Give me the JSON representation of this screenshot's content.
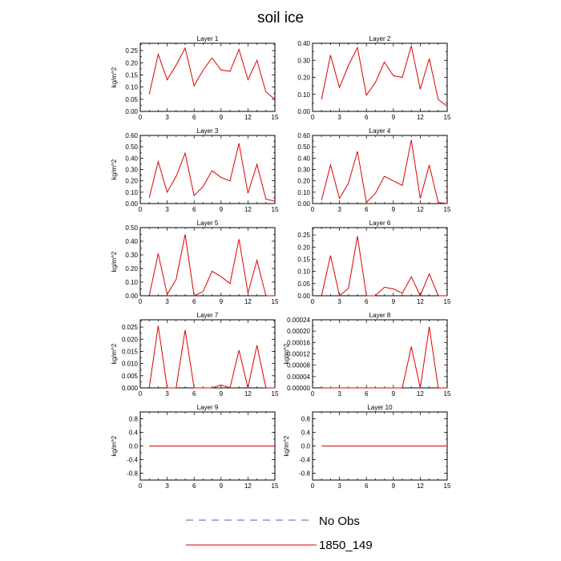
{
  "figure": {
    "title": "soil ice",
    "legend": [
      {
        "label": "No Obs",
        "color": "#5a5ab4",
        "dash": true
      },
      {
        "label": "1850_149",
        "color": "#e00000",
        "dash": false
      }
    ]
  },
  "chart_data": [
    {
      "type": "line",
      "title": "Layer 1",
      "ylabel": "kg/m^2",
      "x": [
        1,
        2,
        3,
        4,
        5,
        6,
        7,
        8,
        9,
        10,
        11,
        12,
        13,
        14,
        15
      ],
      "xlim": [
        0,
        15
      ],
      "xticks": [
        "0",
        "3",
        "6",
        "9",
        "12",
        "15"
      ],
      "ylim": [
        0,
        0.28
      ],
      "yticks": [
        "0.00",
        "0.05",
        "0.10",
        "0.15",
        "0.20",
        "0.25"
      ],
      "ytickvals": [
        0,
        0.05,
        0.1,
        0.15,
        0.2,
        0.25
      ],
      "series": [
        {
          "name": "1850_149",
          "color": "#e00000",
          "values": [
            0.07,
            0.235,
            0.13,
            0.19,
            0.26,
            0.105,
            0.17,
            0.22,
            0.17,
            0.165,
            0.255,
            0.13,
            0.21,
            0.08,
            0.05
          ]
        }
      ]
    },
    {
      "type": "line",
      "title": "Layer 2",
      "ylabel": "",
      "x": [
        1,
        2,
        3,
        4,
        5,
        6,
        7,
        8,
        9,
        10,
        11,
        12,
        13,
        14,
        15
      ],
      "xlim": [
        0,
        15
      ],
      "xticks": [
        "0",
        "3",
        "6",
        "9",
        "12",
        "15"
      ],
      "ylim": [
        0,
        0.4
      ],
      "yticks": [
        "0.00",
        "0.10",
        "0.20",
        "0.30",
        "0.40"
      ],
      "ytickvals": [
        0,
        0.1,
        0.2,
        0.3,
        0.4
      ],
      "series": [
        {
          "name": "1850_149",
          "color": "#e00000",
          "values": [
            0.07,
            0.33,
            0.14,
            0.27,
            0.375,
            0.095,
            0.17,
            0.29,
            0.21,
            0.2,
            0.385,
            0.13,
            0.31,
            0.07,
            0.03
          ]
        }
      ]
    },
    {
      "type": "line",
      "title": "Layer 3",
      "ylabel": "kg/m^2",
      "x": [
        1,
        2,
        3,
        4,
        5,
        6,
        7,
        8,
        9,
        10,
        11,
        12,
        13,
        14,
        15
      ],
      "xlim": [
        0,
        15
      ],
      "xticks": [
        "0",
        "3",
        "6",
        "9",
        "12",
        "15"
      ],
      "ylim": [
        0,
        0.6
      ],
      "yticks": [
        "0.00",
        "0.10",
        "0.20",
        "0.30",
        "0.40",
        "0.50",
        "0.60"
      ],
      "ytickvals": [
        0,
        0.1,
        0.2,
        0.3,
        0.4,
        0.5,
        0.6
      ],
      "series": [
        {
          "name": "1850_149",
          "color": "#e00000",
          "values": [
            0.05,
            0.37,
            0.1,
            0.24,
            0.445,
            0.07,
            0.15,
            0.29,
            0.23,
            0.2,
            0.53,
            0.09,
            0.345,
            0.04,
            0.02
          ]
        }
      ]
    },
    {
      "type": "line",
      "title": "Layer 4",
      "ylabel": "",
      "x": [
        1,
        2,
        3,
        4,
        5,
        6,
        7,
        8,
        9,
        10,
        11,
        12,
        13,
        14,
        15
      ],
      "xlim": [
        0,
        15
      ],
      "xticks": [
        "0",
        "3",
        "6",
        "9",
        "12",
        "15"
      ],
      "ylim": [
        0,
        0.6
      ],
      "yticks": [
        "0.00",
        "0.10",
        "0.20",
        "0.30",
        "0.40",
        "0.50",
        "0.60"
      ],
      "ytickvals": [
        0,
        0.1,
        0.2,
        0.3,
        0.4,
        0.5,
        0.6
      ],
      "series": [
        {
          "name": "1850_149",
          "color": "#e00000",
          "values": [
            0.03,
            0.34,
            0.045,
            0.18,
            0.46,
            0.01,
            0.09,
            0.24,
            0.2,
            0.16,
            0.56,
            0.045,
            0.34,
            0.01,
            0.0
          ]
        }
      ]
    },
    {
      "type": "line",
      "title": "Layer 5",
      "ylabel": "kg/m^2",
      "x": [
        1,
        2,
        3,
        4,
        5,
        6,
        7,
        8,
        9,
        10,
        11,
        12,
        13,
        14,
        15
      ],
      "xlim": [
        0,
        15
      ],
      "xticks": [
        "0",
        "3",
        "6",
        "9",
        "12",
        "15"
      ],
      "ylim": [
        0,
        0.5
      ],
      "yticks": [
        "0.00",
        "0.10",
        "0.20",
        "0.30",
        "0.40",
        "0.50"
      ],
      "ytickvals": [
        0,
        0.1,
        0.2,
        0.3,
        0.4,
        0.5
      ],
      "series": [
        {
          "name": "1850_149",
          "color": "#e00000",
          "values": [
            0.0,
            0.31,
            0.01,
            0.12,
            0.45,
            0.0,
            0.03,
            0.18,
            0.14,
            0.09,
            0.415,
            0.02,
            0.26,
            0.0,
            0.0
          ]
        }
      ]
    },
    {
      "type": "line",
      "title": "Layer 6",
      "ylabel": "",
      "x": [
        1,
        2,
        3,
        4,
        5,
        6,
        7,
        8,
        9,
        10,
        11,
        12,
        13,
        14,
        15
      ],
      "xlim": [
        0,
        15
      ],
      "xticks": [
        "0",
        "3",
        "6",
        "9",
        "12",
        "15"
      ],
      "ylim": [
        0,
        0.28
      ],
      "yticks": [
        "0.00",
        "0.05",
        "0.10",
        "0.15",
        "0.20",
        "0.25"
      ],
      "ytickvals": [
        0,
        0.05,
        0.1,
        0.15,
        0.2,
        0.25
      ],
      "series": [
        {
          "name": "1850_149",
          "color": "#e00000",
          "values": [
            0.0,
            0.165,
            0.0,
            0.03,
            0.245,
            0.0,
            0.0,
            0.035,
            0.028,
            0.01,
            0.078,
            0.0,
            0.09,
            0.0,
            0.0
          ]
        }
      ]
    },
    {
      "type": "line",
      "title": "Layer 7",
      "ylabel": "kg/m^2",
      "x": [
        1,
        2,
        3,
        4,
        5,
        6,
        7,
        8,
        9,
        10,
        11,
        12,
        13,
        14,
        15
      ],
      "xlim": [
        0,
        15
      ],
      "xticks": [
        "0",
        "3",
        "6",
        "9",
        "12",
        "15"
      ],
      "ylim": [
        0,
        0.028
      ],
      "yticks": [
        "0.000",
        "0.005",
        "0.010",
        "0.015",
        "0.020",
        "0.025"
      ],
      "ytickvals": [
        0,
        0.005,
        0.01,
        0.015,
        0.02,
        0.025
      ],
      "series": [
        {
          "name": "1850_149",
          "color": "#e00000",
          "values": [
            0.0,
            0.0255,
            0.0,
            0.0,
            0.0238,
            0.0,
            0.0,
            0.0,
            0.0012,
            0.0,
            0.0155,
            0.0,
            0.0175,
            0.0,
            0.0
          ]
        }
      ]
    },
    {
      "type": "line",
      "title": "Layer 8",
      "ylabel": "kg/m^2",
      "x": [
        1,
        2,
        3,
        4,
        5,
        6,
        7,
        8,
        9,
        10,
        11,
        12,
        13,
        14,
        15
      ],
      "xlim": [
        0,
        15
      ],
      "xticks": [
        "0",
        "3",
        "6",
        "9",
        "12",
        "15"
      ],
      "ylim": [
        0,
        0.00024
      ],
      "yticks": [
        "0.00000",
        "0.00004",
        "0.00008",
        "0.00012",
        "0.00016",
        "0.00020",
        "0.00024"
      ],
      "ytickvals": [
        0,
        4e-05,
        8e-05,
        0.00012,
        0.00016,
        0.0002,
        0.00024
      ],
      "series": [
        {
          "name": "1850_149",
          "color": "#e00000",
          "values": [
            0,
            0,
            0,
            0,
            0,
            0,
            0,
            0,
            0,
            0,
            0.000145,
            0,
            0.000215,
            0,
            0
          ]
        }
      ]
    },
    {
      "type": "line",
      "title": "Layer 9",
      "ylabel": "kg/m^2",
      "x": [
        1,
        2,
        3,
        4,
        5,
        6,
        7,
        8,
        9,
        10,
        11,
        12,
        13,
        14,
        15
      ],
      "xlim": [
        0,
        15
      ],
      "xticks": [
        "0",
        "3",
        "6",
        "9",
        "12",
        "15"
      ],
      "ylim": [
        -1,
        1
      ],
      "yticks": [
        "-0.8",
        "-0.4",
        "0.0",
        "0.4",
        "0.8"
      ],
      "ytickvals": [
        -0.8,
        -0.4,
        0,
        0.4,
        0.8
      ],
      "series": [
        {
          "name": "1850_149",
          "color": "#e00000",
          "values": [
            0,
            0,
            0,
            0,
            0,
            0,
            0,
            0,
            0,
            0,
            0,
            0,
            0,
            0,
            0
          ]
        }
      ]
    },
    {
      "type": "line",
      "title": "Layer 10",
      "ylabel": "kg/m^2",
      "x": [
        1,
        2,
        3,
        4,
        5,
        6,
        7,
        8,
        9,
        10,
        11,
        12,
        13,
        14,
        15
      ],
      "xlim": [
        0,
        15
      ],
      "xticks": [
        "0",
        "3",
        "6",
        "9",
        "12",
        "15"
      ],
      "ylim": [
        -1,
        1
      ],
      "yticks": [
        "-0.8",
        "-0.4",
        "0.0",
        "0.4",
        "0.8"
      ],
      "ytickvals": [
        -0.8,
        -0.4,
        0,
        0.4,
        0.8
      ],
      "series": [
        {
          "name": "1850_149",
          "color": "#e00000",
          "values": [
            0,
            0,
            0,
            0,
            0,
            0,
            0,
            0,
            0,
            0,
            0,
            0,
            0,
            0,
            0
          ]
        }
      ]
    }
  ]
}
